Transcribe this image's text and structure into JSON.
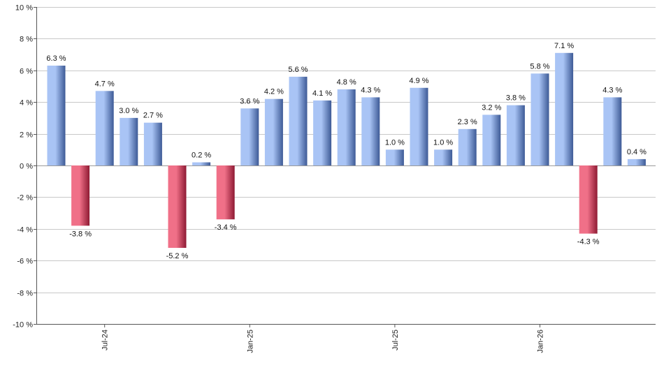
{
  "chart_data": {
    "type": "bar",
    "title": "",
    "xlabel": "",
    "ylabel": "",
    "ylim": [
      -10,
      10
    ],
    "y_ticks": [
      10,
      8,
      6,
      4,
      2,
      0,
      -2,
      -4,
      -6,
      -8,
      -10
    ],
    "y_tick_labels": [
      "10 %",
      "8 %",
      "6 %",
      "4 %",
      "2 %",
      "0 %",
      "-2 %",
      "-4 %",
      "-6 %",
      "-8 %",
      "-10 %"
    ],
    "grid": true,
    "x_tick_labels": [
      {
        "label": "Jul-24",
        "index": 2
      },
      {
        "label": "Jan-25",
        "index": 8
      },
      {
        "label": "Jul-25",
        "index": 14
      },
      {
        "label": "Jan-26",
        "index": 20
      }
    ],
    "values": [
      6.3,
      -3.8,
      4.7,
      3.0,
      2.7,
      -5.2,
      0.2,
      -3.4,
      3.6,
      4.2,
      5.6,
      4.1,
      4.8,
      4.3,
      1.0,
      4.9,
      1.0,
      2.3,
      3.2,
      3.8,
      5.8,
      7.1,
      -4.3,
      4.3,
      0.4
    ],
    "labels": [
      "6.3 %",
      "-3.8 %",
      "4.7 %",
      "3.0 %",
      "2.7 %",
      "-5.2 %",
      "0.2 %",
      "-3.4 %",
      "3.6 %",
      "4.2 %",
      "5.6 %",
      "4.1 %",
      "4.8 %",
      "4.3 %",
      "1.0 %",
      "4.9 %",
      "1.0 %",
      "2.3 %",
      "3.2 %",
      "3.8 %",
      "5.8 %",
      "7.1 %",
      "-4.3 %",
      "4.3 %",
      "0.4 %"
    ],
    "colors": {
      "positive_light": "#a9c4f5",
      "positive_dark": "#3d5a96",
      "negative_light": "#f07088",
      "negative_dark": "#8e1a33"
    }
  }
}
